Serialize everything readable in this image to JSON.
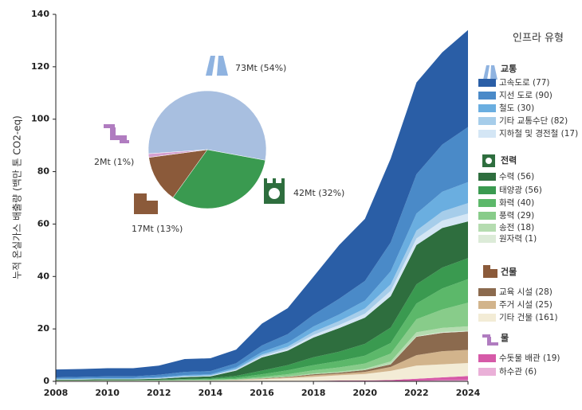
{
  "chart_data": [
    {
      "type": "area",
      "y_label": "누적 온실가스 배출량 (백만 톤 CO2-eq)",
      "legend_title": "인프라 유형",
      "x": [
        2008,
        2009,
        2010,
        2011,
        2012,
        2013,
        2014,
        2015,
        2016,
        2017,
        2018,
        2019,
        2020,
        2021,
        2022,
        2023,
        2024
      ],
      "xlim": [
        2008,
        2024
      ],
      "xticks": [
        2008,
        2010,
        2012,
        2014,
        2016,
        2018,
        2020,
        2022,
        2024
      ],
      "ylim": [
        0,
        140
      ],
      "yticks": [
        0,
        20,
        40,
        60,
        80,
        100,
        120,
        140
      ],
      "groups": [
        {
          "name": "교통",
          "series": [
            {
              "name": "고속도로 (77)",
              "color": "#2a5ea6",
              "values": [
                3,
                3,
                3.1,
                3.1,
                3.5,
                4.9,
                4.9,
                5.2,
                8.3,
                9.9,
                14.5,
                20.5,
                23.7,
                32,
                35,
                35.2,
                37
              ]
            },
            {
              "name": "지선 도로 (90)",
              "color": "#4a8ac8",
              "values": [
                0.5,
                0.6,
                0.7,
                0.7,
                0.9,
                1.2,
                1.2,
                1.5,
                2.5,
                3.3,
                4.5,
                6,
                7.5,
                11,
                15,
                18,
                21
              ]
            },
            {
              "name": "철도 (30)",
              "color": "#6aaee0",
              "values": [
                0.2,
                0.2,
                0.2,
                0.2,
                0.3,
                0.4,
                0.4,
                0.6,
                1,
                1.5,
                2,
                2.5,
                3,
                5,
                6.5,
                7.5,
                8
              ]
            },
            {
              "name": "기타 교통수단 (82)",
              "color": "#a6cdea",
              "values": [
                0.1,
                0.1,
                0.1,
                0.1,
                0.2,
                0.2,
                0.2,
                0.4,
                0.6,
                0.8,
                1.2,
                1.5,
                2,
                2.5,
                3,
                3.5,
                4
              ]
            },
            {
              "name": "지하철 및 경전철 (17)",
              "color": "#d4e6f5",
              "values": [
                0.1,
                0.1,
                0.1,
                0.1,
                0.1,
                0.2,
                0.2,
                0.3,
                0.5,
                0.7,
                1,
                1.2,
                1.5,
                2,
                2.5,
                2.8,
                3
              ]
            }
          ]
        },
        {
          "name": "전력",
          "series": [
            {
              "name": "수력 (56)",
              "color": "#2e6e3e",
              "values": [
                0.2,
                0.3,
                0.3,
                0.3,
                0.4,
                0.7,
                0.7,
                2,
                5,
                5.5,
                7.5,
                9,
                10,
                12,
                15,
                15.1,
                14
              ]
            },
            {
              "name": "태양광 (56)",
              "color": "#3a9a50",
              "values": [
                0,
                0,
                0.1,
                0.1,
                0.1,
                0.2,
                0.3,
                0.7,
                1.4,
                2,
                3,
                3.5,
                4.5,
                5.9,
                7.3,
                8,
                8
              ]
            },
            {
              "name": "화력 (40)",
              "color": "#5cb86a",
              "values": [
                0.1,
                0.1,
                0.1,
                0.1,
                0.1,
                0.2,
                0.3,
                0.5,
                1,
                1.5,
                2,
                2.5,
                3,
                4,
                6,
                8,
                9
              ]
            },
            {
              "name": "풍력 (29)",
              "color": "#88cc8a",
              "values": [
                0,
                0,
                0,
                0,
                0.1,
                0.1,
                0.2,
                0.3,
                0.5,
                0.8,
                1.2,
                1.6,
                2,
                3,
                5,
                7,
                9
              ]
            },
            {
              "name": "송전 (18)",
              "color": "#b5dcb0",
              "values": [
                0,
                0,
                0,
                0,
                0,
                0,
                0,
                0,
                0.1,
                0.2,
                0.3,
                0.4,
                0.5,
                1,
                1.5,
                1.6,
                1.7
              ]
            },
            {
              "name": "원자력 (1)",
              "color": "#dcebd8",
              "values": [
                0,
                0,
                0,
                0,
                0,
                0,
                0,
                0,
                0,
                0,
                0,
                0,
                0,
                0.1,
                0.2,
                0.3,
                0.3
              ]
            }
          ]
        },
        {
          "name": "건물",
          "series": [
            {
              "name": "교육 시설 (28)",
              "color": "#8b6a4e",
              "values": [
                0,
                0,
                0,
                0,
                0,
                0,
                0,
                0,
                0.1,
                0.2,
                0.4,
                0.4,
                0.7,
                1,
                7,
                7,
                7
              ]
            },
            {
              "name": "주거 시설 (25)",
              "color": "#d2b48c",
              "values": [
                0,
                0,
                0,
                0,
                0,
                0,
                0,
                0.1,
                0.2,
                0.3,
                0.6,
                0.6,
                0.8,
                1.5,
                4,
                5,
                5
              ]
            },
            {
              "name": "기타 건물 (161)",
              "color": "#f3ecd6",
              "values": [
                0.2,
                0.2,
                0.2,
                0.2,
                0.2,
                0.3,
                0.3,
                0.4,
                0.7,
                1,
                1.5,
                2,
                2.5,
                3.5,
                5,
                5,
                5
              ]
            }
          ]
        },
        {
          "name": "물",
          "series": [
            {
              "name": "수돗물 배관 (19)",
              "color": "#d65aa8",
              "values": [
                0.1,
                0.1,
                0.1,
                0.1,
                0.1,
                0.1,
                0.1,
                0.1,
                0.1,
                0.2,
                0.2,
                0.3,
                0.3,
                0.4,
                0.8,
                1.1,
                1.5
              ]
            },
            {
              "name": "하수관 (6)",
              "color": "#eab0d8",
              "values": [
                0,
                0,
                0,
                0,
                0,
                0,
                0,
                0,
                0,
                0,
                0,
                0,
                0,
                0.1,
                0.2,
                0.4,
                0.5
              ]
            }
          ]
        }
      ]
    },
    {
      "type": "pie",
      "values": [
        54,
        32,
        13,
        1
      ],
      "value_labels": [
        "73Mt (54%)",
        "42Mt (32%)",
        "17Mt (13%)",
        "2Mt (1%)"
      ],
      "colors": [
        "#a8bfe0",
        "#3a9a50",
        "#8b5a3a",
        "#d4a0d0"
      ]
    }
  ]
}
